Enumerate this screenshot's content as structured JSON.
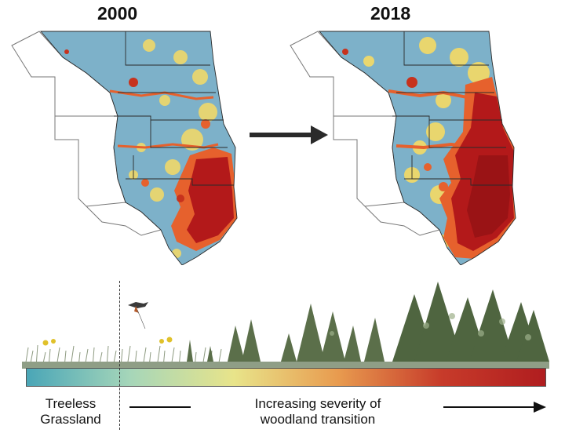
{
  "maps": {
    "left_year": "2000",
    "right_year": "2018"
  },
  "legend": {
    "start_label": "Treeless\nGrassland",
    "end_label": "Increasing severity of\nwoodland transition",
    "gradient_colors": [
      "#4aa6b7",
      "#a6d6b9",
      "#e8e48a",
      "#e89b4f",
      "#c73b2a",
      "#b01d1f"
    ]
  },
  "colors": {
    "grassland": "#78b0c9",
    "low": "#f0d96a",
    "mid": "#e6612d",
    "high": "#a11516",
    "border": "#2a2a2a"
  }
}
